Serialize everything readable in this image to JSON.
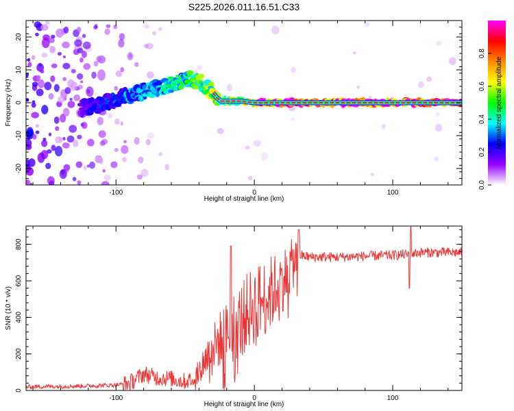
{
  "title": "S225.2026.011.16.51.C33",
  "chart_data": [
    {
      "type": "heatmap",
      "xlabel": "Height of straight line (km)",
      "ylabel": "Frequency (Hz)",
      "xlim": [
        -165,
        150
      ],
      "ylim": [
        -25,
        25
      ],
      "xticks": [
        -100,
        0,
        100
      ],
      "xtick_labels": [
        "-100",
        "0",
        "100"
      ],
      "yticks": [
        -20,
        -10,
        0,
        10,
        20
      ],
      "ytick_labels": [
        "-20",
        "-10",
        "0",
        "10",
        "20"
      ],
      "ridge": {
        "x": [
          -125,
          -110,
          -100,
          -90,
          -80,
          -70,
          -60,
          -50,
          -45,
          -40,
          -35,
          -30,
          -27,
          -24,
          -20,
          -10,
          0,
          20,
          50,
          100,
          150
        ],
        "y": [
          -1.5,
          -0.5,
          1,
          2.5,
          3.5,
          4.5,
          5.5,
          7,
          7.3,
          6.5,
          5,
          3,
          1.5,
          0.5,
          0.5,
          0.5,
          0,
          0,
          0,
          0,
          0
        ]
      },
      "colorbar": {
        "label": "Normalized spectral amplitude",
        "range": [
          0,
          1
        ],
        "ticks": [
          0.0,
          0.2,
          0.4,
          0.6,
          0.8
        ],
        "tick_labels": [
          "0.0",
          "0.2",
          "0.4",
          "0.6",
          "0.8"
        ],
        "colors": [
          "#ffffff",
          "#9900ff",
          "#0000ff",
          "#00ffff",
          "#00ff00",
          "#ffff00",
          "#ff8800",
          "#ff0000",
          "#ff00ff"
        ]
      }
    },
    {
      "type": "line",
      "xlabel": "Height of straight line (km)",
      "ylabel": "SNR (10 * v/v)",
      "xlim": [
        -165,
        150
      ],
      "ylim": [
        0,
        900
      ],
      "xticks": [
        -100,
        0,
        100
      ],
      "xtick_labels": [
        "-100",
        "0",
        "100"
      ],
      "yticks": [
        0,
        200,
        400,
        600,
        800
      ],
      "ytick_labels": [
        "0",
        "200",
        "400",
        "600",
        "800"
      ],
      "color": "#ee3333",
      "trend": {
        "x": [
          -165,
          -120,
          -100,
          -90,
          -80,
          -70,
          -60,
          -55,
          -50,
          -45,
          -40,
          -35,
          -30,
          -25,
          -20,
          -15,
          -10,
          -5,
          0,
          10,
          20,
          25,
          30,
          33,
          40,
          60,
          80,
          100,
          110,
          120,
          150
        ],
        "y": [
          20,
          25,
          30,
          40,
          90,
          70,
          65,
          55,
          50,
          60,
          100,
          180,
          230,
          280,
          310,
          350,
          380,
          430,
          470,
          520,
          600,
          660,
          720,
          740,
          730,
          730,
          735,
          740,
          745,
          755,
          755
        ]
      },
      "spikes": [
        {
          "x": -17,
          "y": 790
        },
        {
          "x": 32,
          "y": 880
        },
        {
          "x": 113,
          "y": 895
        },
        {
          "x": 112,
          "y": 560
        }
      ]
    }
  ]
}
